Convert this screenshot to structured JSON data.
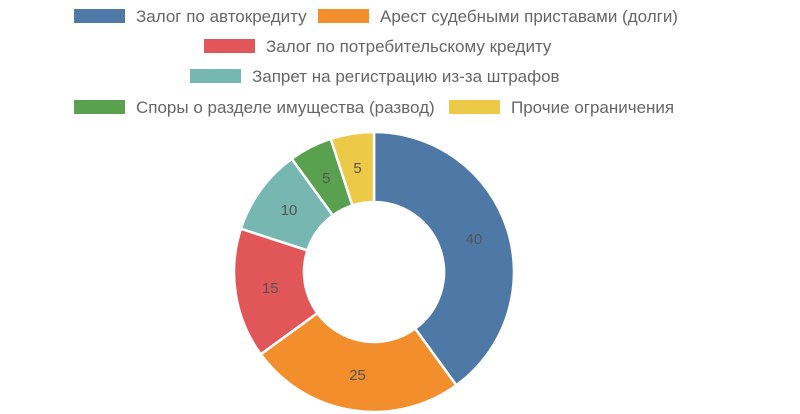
{
  "chart_data": {
    "type": "pie",
    "variant": "doughnut",
    "legend_position": "top",
    "series": [
      {
        "label": "Залог по автокредиту",
        "value": 40,
        "color": "#4e79a7"
      },
      {
        "label": "Арест судебными приставами (долги)",
        "value": 25,
        "color": "#f28e2b"
      },
      {
        "label": "Залог по потребительскому кредиту",
        "value": 15,
        "color": "#e15759"
      },
      {
        "label": "Запрет на регистрацию из-за штрафов",
        "value": 10,
        "color": "#76b7b2"
      },
      {
        "label": "Споры о разделе имущества (развод)",
        "value": 5,
        "color": "#59a14f"
      },
      {
        "label": "Прочие ограничения",
        "value": 5,
        "color": "#edc948"
      }
    ]
  }
}
